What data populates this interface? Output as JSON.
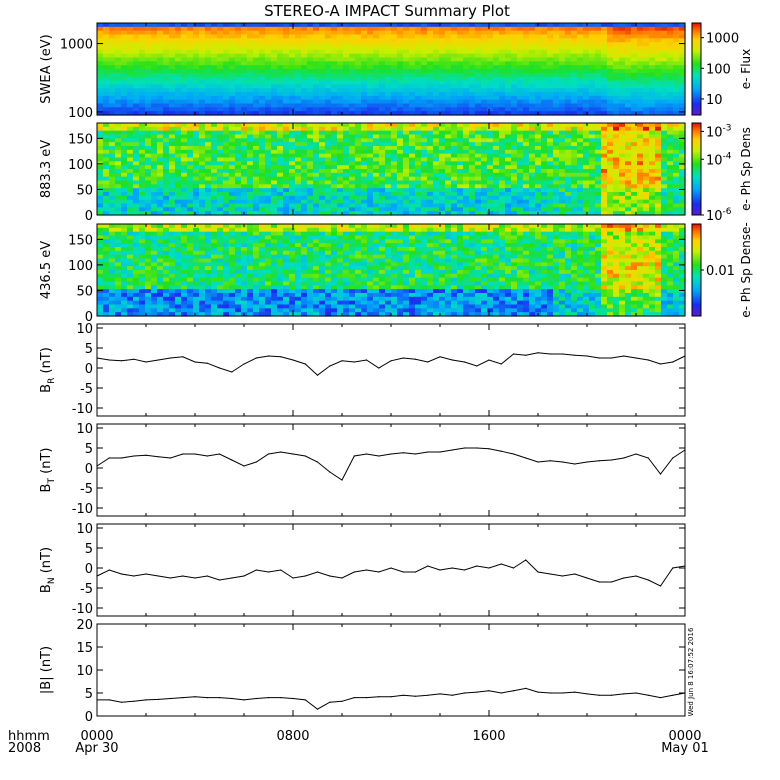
{
  "title": "STEREO-A IMPACT Summary Plot",
  "stamp": "Wed Jun  8 16:07:52 2016",
  "time_axis": {
    "corner_top": "hhmm",
    "corner_bottom": "2008",
    "ticks": [
      {
        "h": 0,
        "label": "0000",
        "sub": "Apr 30"
      },
      {
        "h": 8,
        "label": "0800",
        "sub": ""
      },
      {
        "h": 16,
        "label": "1600",
        "sub": ""
      },
      {
        "h": 24,
        "label": "0000",
        "sub": "May 01"
      }
    ],
    "range_hours": [
      0,
      24
    ]
  },
  "chart_data": [
    {
      "type": "heatmap",
      "ylabel": "SWEA (eV)",
      "ylog": true,
      "ylim": [
        90,
        2000
      ],
      "yticks": [
        {
          "v": 100,
          "label": "100"
        },
        {
          "v": 1000,
          "label": "1000"
        }
      ],
      "colorbar": {
        "label": "e- Flux",
        "log": true,
        "range": [
          3,
          3000
        ],
        "ticks": [
          {
            "v": 10,
            "label": "10"
          },
          {
            "v": 100,
            "label": "100"
          },
          {
            "v": 1000,
            "label": "1000"
          }
        ]
      }
    },
    {
      "type": "heatmap",
      "ylabel": "883.3 eV",
      "ylim": [
        0,
        180
      ],
      "yticks": [
        {
          "v": 0,
          "label": "0"
        },
        {
          "v": 50,
          "label": "50"
        },
        {
          "v": 100,
          "label": "100"
        },
        {
          "v": 150,
          "label": "150"
        }
      ],
      "colorbar": {
        "label": "e- Ph Sp Dens",
        "log": true,
        "range": [
          1e-06,
          0.002
        ],
        "ticks": [
          {
            "v": 1e-06,
            "label": "10",
            "exp": "-6"
          },
          {
            "v": 0.0001,
            "label": "10",
            "exp": "-4"
          },
          {
            "v": 0.001,
            "label": "10",
            "exp": "-3"
          }
        ]
      }
    },
    {
      "type": "heatmap",
      "ylabel": "436.5 eV",
      "ylim": [
        0,
        180
      ],
      "yticks": [
        {
          "v": 0,
          "label": "0"
        },
        {
          "v": 50,
          "label": "50"
        },
        {
          "v": 100,
          "label": "100"
        },
        {
          "v": 150,
          "label": "150"
        }
      ],
      "colorbar": {
        "label": "e- Ph Sp Dense-",
        "log": true,
        "range": [
          0.001,
          0.1
        ],
        "ticks": [
          {
            "v": 0.01,
            "label": "0.01"
          }
        ]
      }
    },
    {
      "type": "line",
      "ylabel": "B",
      "ysub": "R",
      "yunit": " (nT)",
      "ylim": [
        -12,
        11
      ],
      "yticks": [
        {
          "v": -10,
          "label": "-10"
        },
        {
          "v": -5,
          "label": "-5"
        },
        {
          "v": 0,
          "label": "0"
        },
        {
          "v": 5,
          "label": "5"
        },
        {
          "v": 10,
          "label": "10"
        }
      ],
      "x": [
        0,
        0.5,
        1,
        1.5,
        2,
        2.5,
        3,
        3.5,
        4,
        4.5,
        5,
        5.5,
        6,
        6.5,
        7,
        7.5,
        8,
        8.5,
        9,
        9.5,
        10,
        10.5,
        11,
        11.5,
        12,
        12.5,
        13,
        13.5,
        14,
        14.5,
        15,
        15.5,
        16,
        16.5,
        17,
        17.5,
        18,
        18.5,
        19,
        19.5,
        20,
        20.5,
        21,
        21.5,
        22,
        22.5,
        23,
        23.5,
        24
      ],
      "y": [
        2.5,
        2,
        1.8,
        2.2,
        1.5,
        2,
        2.5,
        2.8,
        1.5,
        1.2,
        0,
        -1,
        1,
        2.5,
        3,
        2.8,
        2,
        1,
        -1.8,
        0.5,
        1.8,
        1.5,
        2,
        0,
        1.8,
        2.5,
        2.2,
        1.5,
        2.8,
        2,
        1.5,
        0.5,
        2,
        1,
        3.5,
        3.2,
        3.8,
        3.5,
        3.5,
        3.2,
        3,
        2.5,
        2.5,
        3,
        2.5,
        2,
        1,
        1.5,
        3
      ]
    },
    {
      "type": "line",
      "ylabel": "B",
      "ysub": "T",
      "yunit": " (nT)",
      "ylim": [
        -12,
        11
      ],
      "yticks": [
        {
          "v": -10,
          "label": "-10"
        },
        {
          "v": -5,
          "label": "-5"
        },
        {
          "v": 0,
          "label": "0"
        },
        {
          "v": 5,
          "label": "5"
        },
        {
          "v": 10,
          "label": "10"
        }
      ],
      "x": [
        0,
        0.5,
        1,
        1.5,
        2,
        2.5,
        3,
        3.5,
        4,
        4.5,
        5,
        5.5,
        6,
        6.5,
        7,
        7.5,
        8,
        8.5,
        9,
        9.5,
        10,
        10.5,
        11,
        11.5,
        12,
        12.5,
        13,
        13.5,
        14,
        14.5,
        15,
        15.5,
        16,
        16.5,
        17,
        17.5,
        18,
        18.5,
        19,
        19.5,
        20,
        20.5,
        21,
        21.5,
        22,
        22.5,
        23,
        23.5,
        24
      ],
      "y": [
        0.5,
        2.5,
        2.5,
        3,
        3.2,
        2.8,
        2.5,
        3.5,
        3.5,
        3,
        3.5,
        2,
        0.5,
        1.5,
        3.5,
        4,
        3.5,
        3,
        1.5,
        -1,
        -3,
        3,
        3.5,
        3,
        3.5,
        3.8,
        3.5,
        4,
        4,
        4.5,
        5,
        5,
        4.8,
        4.2,
        3.5,
        2.5,
        1.5,
        1.8,
        1.5,
        1,
        1.5,
        1.8,
        2,
        2.5,
        3.5,
        2.5,
        -1.5,
        2.5,
        4.5
      ]
    },
    {
      "type": "line",
      "ylabel": "B",
      "ysub": "N",
      "yunit": " (nT)",
      "ylim": [
        -12,
        11
      ],
      "yticks": [
        {
          "v": -10,
          "label": "-10"
        },
        {
          "v": -5,
          "label": "-5"
        },
        {
          "v": 0,
          "label": "0"
        },
        {
          "v": 5,
          "label": "5"
        },
        {
          "v": 10,
          "label": "10"
        }
      ],
      "x": [
        0,
        0.5,
        1,
        1.5,
        2,
        2.5,
        3,
        3.5,
        4,
        4.5,
        5,
        5.5,
        6,
        6.5,
        7,
        7.5,
        8,
        8.5,
        9,
        9.5,
        10,
        10.5,
        11,
        11.5,
        12,
        12.5,
        13,
        13.5,
        14,
        14.5,
        15,
        15.5,
        16,
        16.5,
        17,
        17.5,
        18,
        18.5,
        19,
        19.5,
        20,
        20.5,
        21,
        21.5,
        22,
        22.5,
        23,
        23.5,
        24
      ],
      "y": [
        -2,
        -0.5,
        -1.5,
        -2,
        -1.5,
        -2,
        -2.5,
        -2,
        -2.5,
        -2,
        -3,
        -2.5,
        -2,
        -0.5,
        -1,
        -0.5,
        -2.5,
        -2,
        -1,
        -2,
        -2.5,
        -1,
        -0.5,
        -1,
        0,
        -1,
        -1,
        0.5,
        -0.5,
        0,
        -0.5,
        0.5,
        0,
        1,
        0,
        2,
        -1,
        -1.5,
        -2,
        -1.5,
        -2.5,
        -3.5,
        -3.5,
        -2.5,
        -2,
        -3,
        -4.5,
        0,
        0.5
      ]
    },
    {
      "type": "line",
      "ylabel": "|B|",
      "ysub": "",
      "yunit": " (nT)",
      "ylim": [
        0,
        20
      ],
      "yticks": [
        {
          "v": 0,
          "label": "0"
        },
        {
          "v": 5,
          "label": "5"
        },
        {
          "v": 10,
          "label": "10"
        },
        {
          "v": 15,
          "label": "15"
        },
        {
          "v": 20,
          "label": "20"
        }
      ],
      "x": [
        0,
        0.5,
        1,
        1.5,
        2,
        2.5,
        3,
        3.5,
        4,
        4.5,
        5,
        5.5,
        6,
        6.5,
        7,
        7.5,
        8,
        8.5,
        9,
        9.5,
        10,
        10.5,
        11,
        11.5,
        12,
        12.5,
        13,
        13.5,
        14,
        14.5,
        15,
        15.5,
        16,
        16.5,
        17,
        17.5,
        18,
        18.5,
        19,
        19.5,
        20,
        20.5,
        21,
        21.5,
        22,
        22.5,
        23,
        23.5,
        24
      ],
      "y": [
        3.5,
        3.5,
        3,
        3.2,
        3.5,
        3.6,
        3.8,
        4,
        4.2,
        4,
        4,
        3.8,
        3.5,
        3.8,
        4,
        4,
        3.8,
        3.5,
        1.5,
        3,
        3.2,
        4,
        4,
        4.2,
        4.2,
        4.5,
        4.3,
        4.5,
        4.8,
        4.5,
        5,
        5.2,
        5.5,
        5,
        5.5,
        6,
        5.2,
        5,
        5,
        5.2,
        4.8,
        4.5,
        4.5,
        4.8,
        5,
        4.5,
        4,
        4.5,
        5
      ]
    }
  ]
}
